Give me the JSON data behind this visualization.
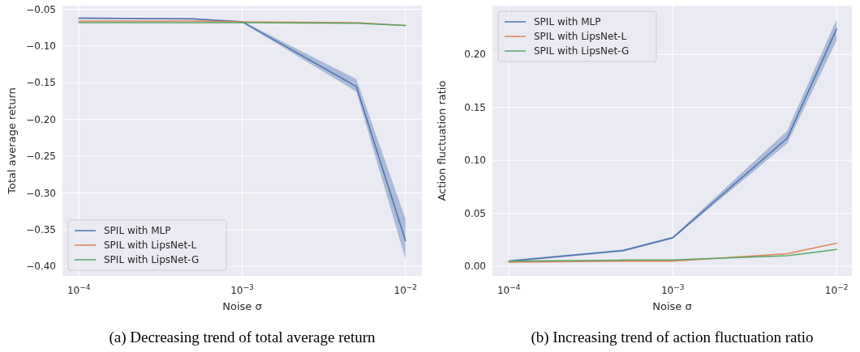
{
  "chart_data": [
    {
      "type": "line",
      "annotations": [
        "(a)  Decreasing trend of total average return"
      ],
      "xlabel": "Noise σ",
      "ylabel": "Total average return",
      "log": "x",
      "grid": true,
      "legend": "bottom left",
      "x": [
        0.0001,
        0.0005,
        0.001,
        0.005,
        0.01
      ],
      "xlim": [
        7.94e-05,
        0.0126
      ],
      "xticks": [
        {
          "value": 0.0001,
          "label": "10$^{−4}$"
        },
        {
          "value": 0.001,
          "label": "10$^{−3}$"
        },
        {
          "value": 0.01,
          "label": "10$^{−2}$"
        }
      ],
      "ylim": [
        -0.413,
        -0.045
      ],
      "yticks": [
        {
          "value": -0.05,
          "label": "−0.05"
        },
        {
          "value": -0.1,
          "label": "−0.10"
        },
        {
          "value": -0.15,
          "label": "−0.15"
        },
        {
          "value": -0.2,
          "label": "−0.20"
        },
        {
          "value": -0.25,
          "label": "−0.25"
        },
        {
          "value": -0.3,
          "label": "−0.30"
        },
        {
          "value": -0.35,
          "label": "−0.35"
        },
        {
          "value": -0.4,
          "label": "−0.40"
        }
      ],
      "series": [
        {
          "name": "SPIL with MLP",
          "color": "#4c72b0",
          "values": [
            -0.062,
            -0.063,
            -0.067,
            -0.155,
            -0.365
          ],
          "lower": [
            -0.063,
            -0.064,
            -0.068,
            -0.162,
            -0.39
          ],
          "upper": [
            -0.061,
            -0.062,
            -0.066,
            -0.145,
            -0.335
          ]
        },
        {
          "name": "SPIL with LipsNet-L",
          "color": "#dd8452",
          "values": [
            -0.066,
            -0.066,
            -0.067,
            -0.068,
            -0.072
          ]
        },
        {
          "name": "SPIL with LipsNet-G",
          "color": "#55a868",
          "values": [
            -0.068,
            -0.068,
            -0.068,
            -0.069,
            -0.072
          ]
        }
      ]
    },
    {
      "type": "line",
      "annotations": [
        "(b)  Increasing trend of action fluctuation ratio"
      ],
      "xlabel": "Noise σ",
      "ylabel": "Action fluctuation ratio",
      "log": "x",
      "grid": true,
      "legend": "top left",
      "x": [
        0.0001,
        0.0005,
        0.001,
        0.005,
        0.01
      ],
      "xlim": [
        7.94e-05,
        0.0124
      ],
      "xticks": [
        {
          "value": 0.0001,
          "label": "10$^{−4}$"
        },
        {
          "value": 0.001,
          "label": "10$^{−3}$"
        },
        {
          "value": 0.01,
          "label": "10$^{−2}$"
        }
      ],
      "ylim": [
        -0.009,
        0.246
      ],
      "yticks": [
        {
          "value": 0,
          "label": "0.00"
        },
        {
          "value": 0.05,
          "label": "0.05"
        },
        {
          "value": 0.1,
          "label": "0.10"
        },
        {
          "value": 0.15,
          "label": "0.15"
        },
        {
          "value": 0.2,
          "label": "0.20"
        }
      ],
      "series": [
        {
          "name": "SPIL with MLP",
          "color": "#4c72b0",
          "values": [
            0.005,
            0.015,
            0.027,
            0.121,
            0.224
          ],
          "lower": [
            0.004,
            0.014,
            0.026,
            0.116,
            0.213
          ],
          "upper": [
            0.006,
            0.016,
            0.028,
            0.128,
            0.233
          ]
        },
        {
          "name": "SPIL with LipsNet-L",
          "color": "#dd8452",
          "values": [
            0.004,
            0.005,
            0.005,
            0.012,
            0.022
          ]
        },
        {
          "name": "SPIL with LipsNet-G",
          "color": "#55a868",
          "values": [
            0.005,
            0.006,
            0.006,
            0.01,
            0.016
          ]
        }
      ]
    }
  ]
}
